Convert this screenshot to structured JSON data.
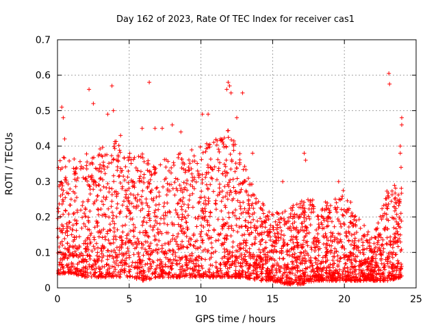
{
  "chart_data": {
    "type": "scatter",
    "title": "Day 162 of 2023, Rate Of TEC Index for receiver cas1",
    "xlabel": "GPS time / hours",
    "ylabel": "ROTI / TECUs",
    "xlim": [
      0,
      25
    ],
    "ylim": [
      0,
      0.7
    ],
    "xticks": [
      0,
      5,
      10,
      15,
      20,
      25
    ],
    "yticks": [
      0,
      0.1,
      0.2,
      0.3,
      0.4,
      0.5,
      0.6,
      0.7
    ],
    "xtick_labels": [
      "0",
      "5",
      "10",
      "15",
      "20",
      "25"
    ],
    "ytick_labels": [
      "0",
      "0.1",
      "0.2",
      "0.3",
      "0.4",
      "0.5",
      "0.6",
      "0.7"
    ],
    "grid": true,
    "marker": "+",
    "color": "#ff0000",
    "outliers": [
      [
        0.3,
        0.51
      ],
      [
        0.4,
        0.48
      ],
      [
        0.5,
        0.42
      ],
      [
        2.2,
        0.56
      ],
      [
        2.5,
        0.52
      ],
      [
        3.8,
        0.57
      ],
      [
        3.9,
        0.5
      ],
      [
        6.4,
        0.58
      ],
      [
        5.9,
        0.45
      ],
      [
        6.8,
        0.45
      ],
      [
        7.3,
        0.45
      ],
      [
        8.0,
        0.46
      ],
      [
        8.6,
        0.44
      ],
      [
        10.1,
        0.49
      ],
      [
        10.5,
        0.49
      ],
      [
        11.9,
        0.58
      ],
      [
        12.0,
        0.57
      ],
      [
        11.8,
        0.56
      ],
      [
        12.1,
        0.55
      ],
      [
        12.9,
        0.55
      ],
      [
        12.5,
        0.48
      ],
      [
        17.2,
        0.38
      ],
      [
        17.3,
        0.36
      ],
      [
        23.1,
        0.605
      ],
      [
        23.15,
        0.575
      ],
      [
        24.0,
        0.48
      ],
      [
        24.0,
        0.46
      ],
      [
        23.9,
        0.4
      ],
      [
        23.9,
        0.38
      ],
      [
        23.95,
        0.34
      ],
      [
        3.5,
        0.49
      ],
      [
        4.4,
        0.43
      ],
      [
        13.6,
        0.38
      ],
      [
        15.7,
        0.3
      ],
      [
        19.6,
        0.3
      ]
    ],
    "envelope": [
      {
        "x": 0,
        "low": 0.04,
        "high": 0.35
      },
      {
        "x": 1,
        "low": 0.04,
        "high": 0.4
      },
      {
        "x": 2,
        "low": 0.03,
        "high": 0.38
      },
      {
        "x": 3,
        "low": 0.03,
        "high": 0.4
      },
      {
        "x": 4,
        "low": 0.03,
        "high": 0.42
      },
      {
        "x": 5,
        "low": 0.03,
        "high": 0.38
      },
      {
        "x": 6,
        "low": 0.02,
        "high": 0.38
      },
      {
        "x": 7,
        "low": 0.03,
        "high": 0.36
      },
      {
        "x": 8,
        "low": 0.03,
        "high": 0.38
      },
      {
        "x": 9,
        "low": 0.03,
        "high": 0.38
      },
      {
        "x": 10,
        "low": 0.03,
        "high": 0.42
      },
      {
        "x": 11,
        "low": 0.03,
        "high": 0.42
      },
      {
        "x": 12,
        "low": 0.03,
        "high": 0.45
      },
      {
        "x": 13,
        "low": 0.03,
        "high": 0.35
      },
      {
        "x": 14,
        "low": 0.02,
        "high": 0.25
      },
      {
        "x": 15,
        "low": 0.02,
        "high": 0.22
      },
      {
        "x": 16,
        "low": 0.01,
        "high": 0.22
      },
      {
        "x": 17,
        "low": 0.01,
        "high": 0.25
      },
      {
        "x": 18,
        "low": 0.02,
        "high": 0.25
      },
      {
        "x": 19,
        "low": 0.02,
        "high": 0.24
      },
      {
        "x": 20,
        "low": 0.02,
        "high": 0.28
      },
      {
        "x": 21,
        "low": 0.02,
        "high": 0.2
      },
      {
        "x": 22,
        "low": 0.02,
        "high": 0.14
      },
      {
        "x": 23,
        "low": 0.02,
        "high": 0.28
      },
      {
        "x": 24,
        "low": 0.03,
        "high": 0.3
      }
    ],
    "n_points": 3200
  }
}
